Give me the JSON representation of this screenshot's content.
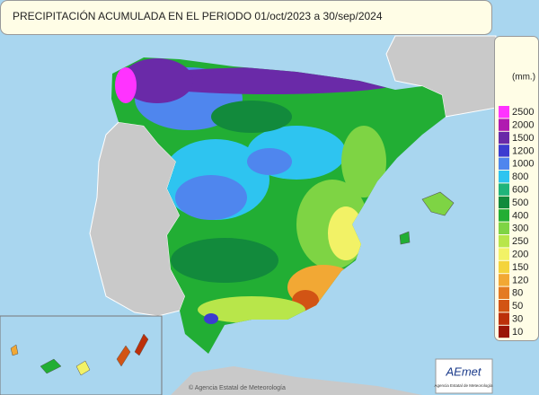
{
  "header": {
    "title": "PRECIPITACIÓN ACUMULADA EN EL PERIODO  01/oct/2023 a 30/sep/2024"
  },
  "legend": {
    "unit": "(mm.)",
    "items": [
      {
        "label": 2500,
        "color": "#ff33ff"
      },
      {
        "label": 2000,
        "color": "#b01ab0"
      },
      {
        "label": 1500,
        "color": "#6a2aa8"
      },
      {
        "label": 1200,
        "color": "#3c3cd0"
      },
      {
        "label": 1000,
        "color": "#4f86ee"
      },
      {
        "label": 800,
        "color": "#2ec4f0"
      },
      {
        "label": 600,
        "color": "#1fb47a"
      },
      {
        "label": 500,
        "color": "#128a3c"
      },
      {
        "label": 400,
        "color": "#22ae34"
      },
      {
        "label": 300,
        "color": "#7ed444"
      },
      {
        "label": 250,
        "color": "#b8e64a"
      },
      {
        "label": 200,
        "color": "#f2f266"
      },
      {
        "label": 150,
        "color": "#f4d43c"
      },
      {
        "label": 120,
        "color": "#f2a834"
      },
      {
        "label": 80,
        "color": "#e47a22"
      },
      {
        "label": 50,
        "color": "#d25414"
      },
      {
        "label": 30,
        "color": "#bc300a"
      },
      {
        "label": 10,
        "color": "#9a1406"
      }
    ]
  },
  "credits": "© Agencia Estatal de Meteorología",
  "logo": {
    "name": "AEmet",
    "subtitle": "Agencia Estatal de Meteorología"
  }
}
